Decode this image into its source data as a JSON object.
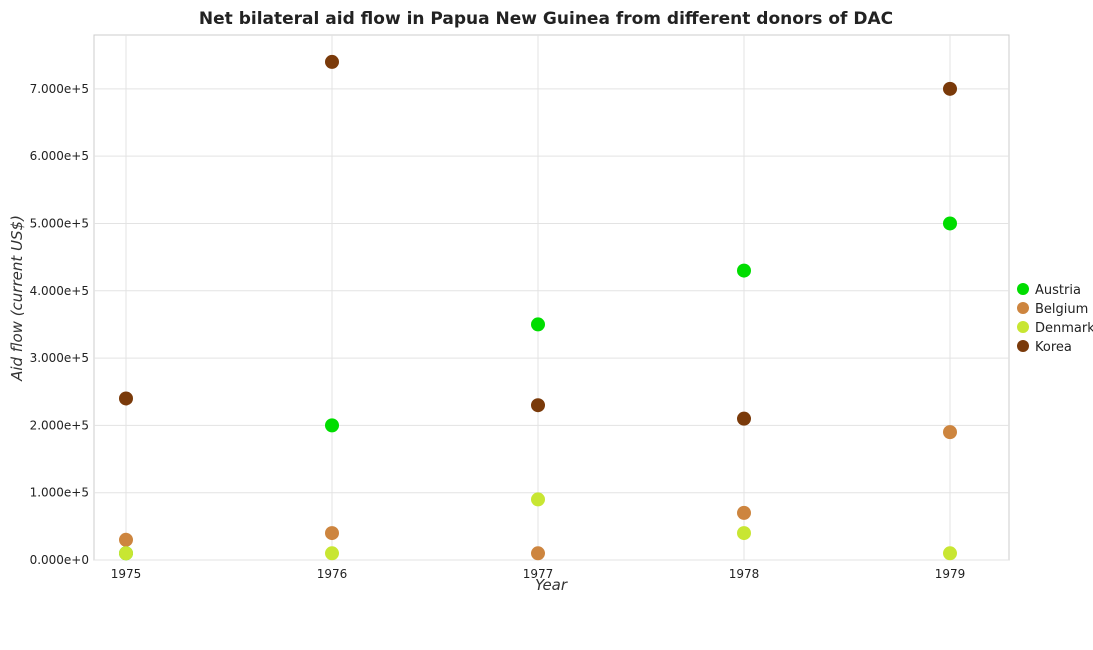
{
  "chart_data": {
    "type": "scatter",
    "title": "Net bilateral aid flow in Papua New Guinea from different donors of DAC",
    "xlabel": "Year",
    "ylabel": "Aid flow (current US$)",
    "categories": [
      "1975",
      "1976",
      "1977",
      "1978",
      "1979"
    ],
    "ylim": [
      0,
      780000
    ],
    "yticks": [
      0,
      100000,
      200000,
      300000,
      400000,
      500000,
      600000,
      700000
    ],
    "ytick_labels": [
      "0.000e+0",
      "1.000e+5",
      "2.000e+5",
      "3.000e+5",
      "4.000e+5",
      "5.000e+5",
      "6.000e+5",
      "7.000e+5"
    ],
    "grid": true,
    "legend_position": "right",
    "series": [
      {
        "name": "Austria",
        "color": "#00dd00",
        "values": [
          10000,
          200000,
          350000,
          430000,
          500000
        ]
      },
      {
        "name": "Belgium",
        "color": "#cd853f",
        "values": [
          30000,
          40000,
          10000,
          70000,
          190000
        ]
      },
      {
        "name": "Denmark",
        "color": "#c8e632",
        "values": [
          10000,
          10000,
          90000,
          40000,
          10000
        ]
      },
      {
        "name": "Korea",
        "color": "#7a3a0a",
        "values": [
          240000,
          740000,
          230000,
          210000,
          700000
        ]
      }
    ]
  }
}
